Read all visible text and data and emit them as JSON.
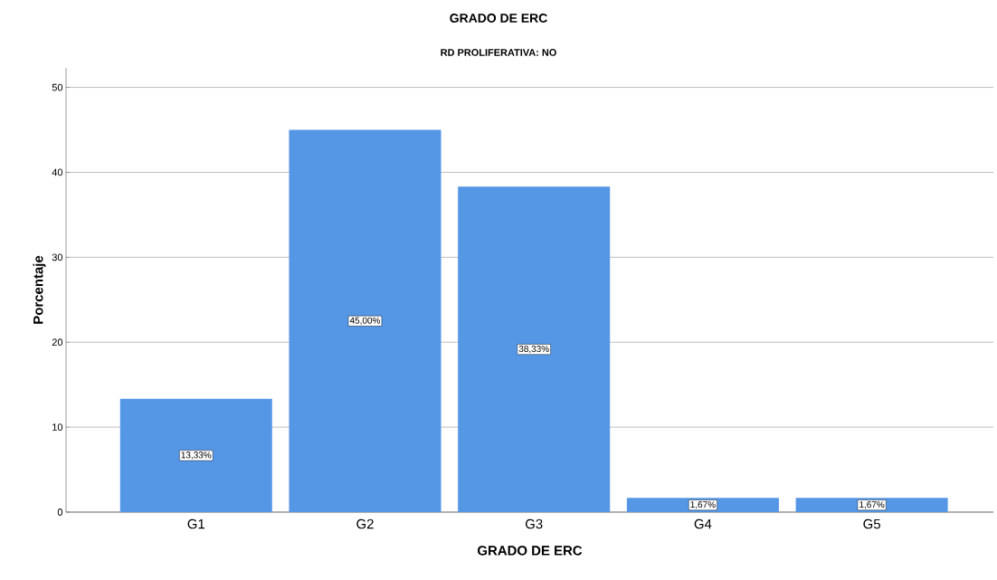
{
  "chart_data": {
    "type": "bar",
    "title": "GRADO DE ERC",
    "subtitle": "RD PROLIFERATIVA: NO",
    "xlabel": "GRADO DE ERC",
    "ylabel": "Porcentaje",
    "categories": [
      "G1",
      "G2",
      "G3",
      "G4",
      "G5"
    ],
    "values": [
      13.33,
      45.0,
      38.33,
      1.67,
      1.67
    ],
    "value_labels": [
      "13,33%",
      "45,00%",
      "38,33%",
      "1,67%",
      "1,67%"
    ],
    "color": "#5596e5",
    "ylim": [
      0,
      52.3
    ],
    "yticks": [
      0,
      10,
      20,
      30,
      40,
      50
    ],
    "grid": "y"
  }
}
